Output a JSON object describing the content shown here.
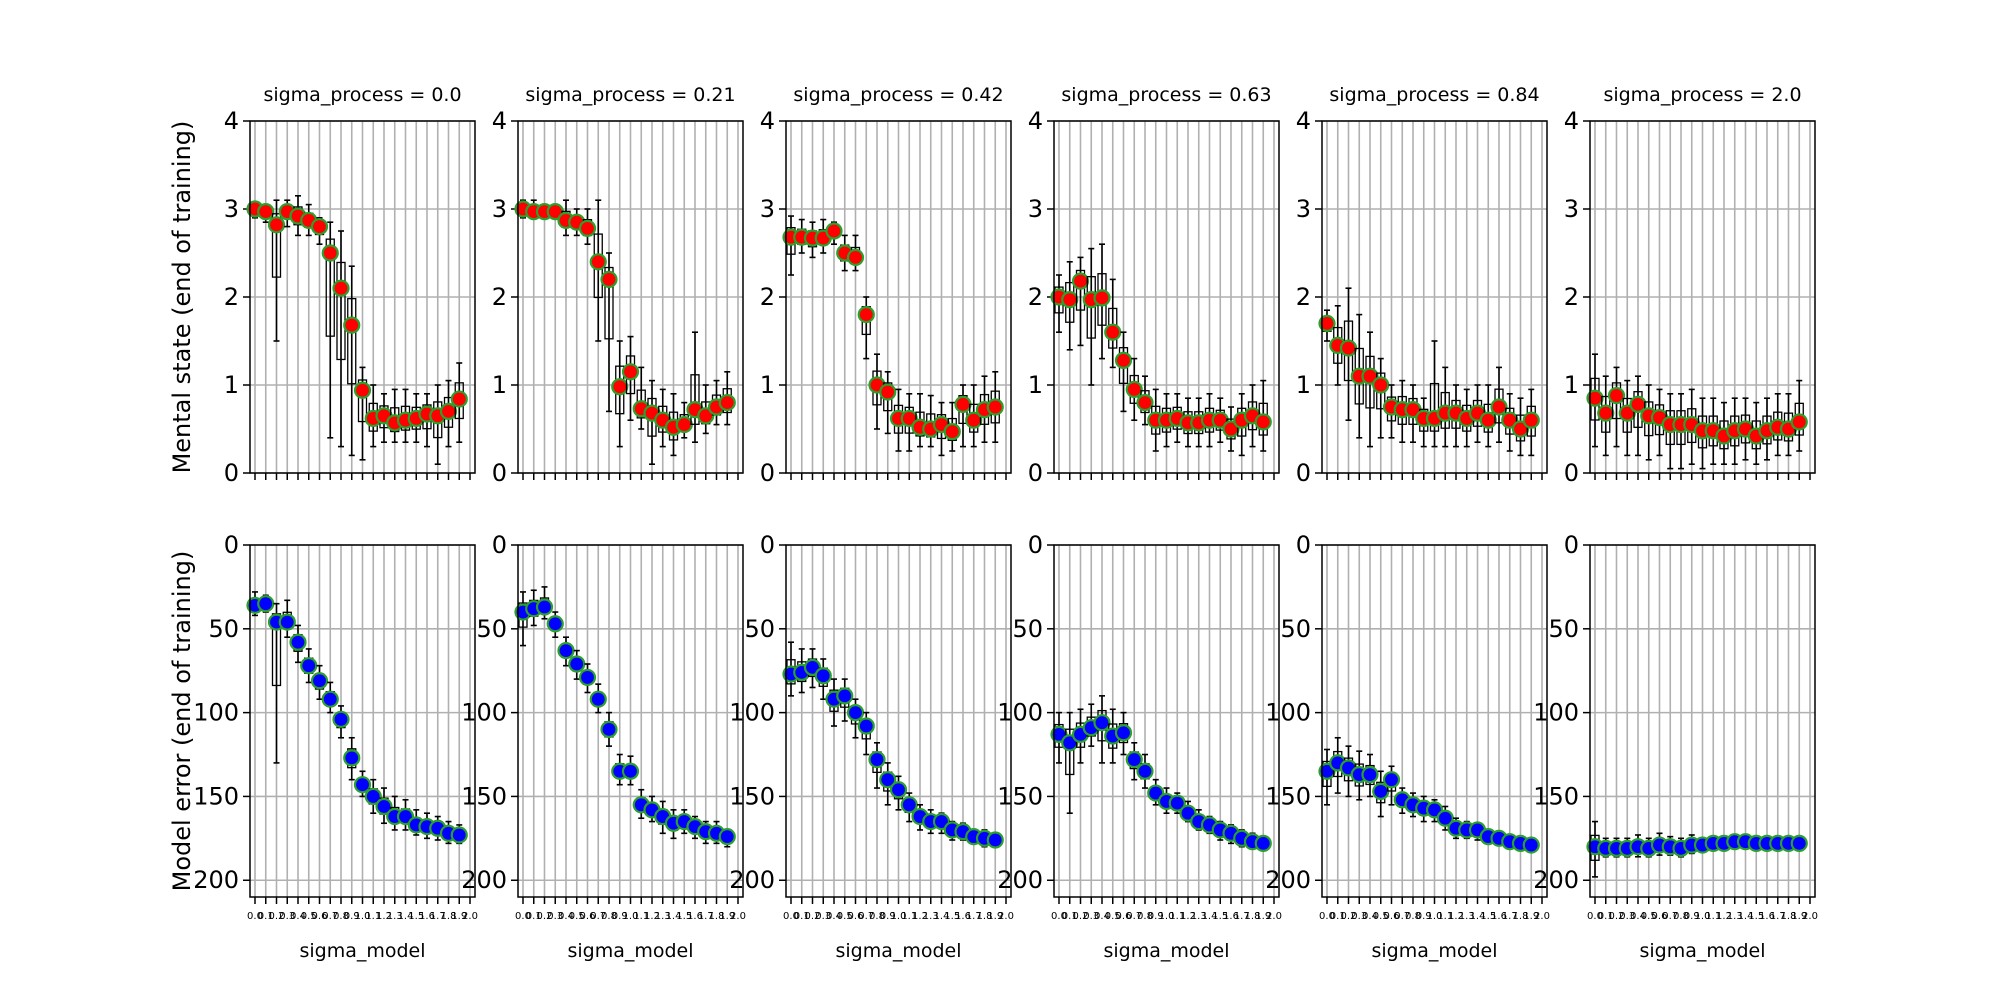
{
  "chart_data": {
    "type": "box-dot-grid",
    "x_tick_labels": [
      "0.0",
      "0.1",
      "0.2",
      "0.3",
      "0.4",
      "0.5",
      "0.6",
      "0.7",
      "0.8",
      "0.9",
      "1.0",
      "1.1",
      "1.2",
      "1.3",
      "1.4",
      "1.5",
      "1.6",
      "1.7",
      "1.8",
      "1.9",
      "2.0"
    ],
    "x_label": "sigma_model",
    "rows": [
      {
        "ylabel": "Mental state (end of training)",
        "ylim": [
          0,
          4
        ],
        "y_ticks": [
          0,
          1,
          2,
          3,
          4
        ],
        "inverted": false,
        "marker_face": "#ff0000",
        "marker_edge": "#2ca02c"
      },
      {
        "ylabel": "Model error (end of training)",
        "ylim": [
          0,
          210
        ],
        "y_ticks": [
          0,
          50,
          100,
          150,
          200
        ],
        "inverted": true,
        "marker_face": "#0000ff",
        "marker_edge": "#2ca02c"
      }
    ],
    "panels": [
      {
        "title": "sigma_process = 0.0",
        "mental": {
          "values": [
            3.0,
            2.97,
            2.82,
            2.97,
            2.92,
            2.87,
            2.8,
            2.5,
            2.1,
            1.68,
            0.94,
            0.62,
            0.65,
            0.57,
            0.6,
            0.62,
            0.67,
            0.65,
            0.7,
            0.84
          ],
          "err_low": [
            2.9,
            2.85,
            1.5,
            2.8,
            2.7,
            2.7,
            2.6,
            0.4,
            0.3,
            0.2,
            0.15,
            0.3,
            0.35,
            0.35,
            0.35,
            0.35,
            0.3,
            0.1,
            0.3,
            0.35
          ],
          "err_high": [
            3.05,
            3.05,
            3.1,
            3.1,
            3.15,
            3.05,
            2.9,
            2.85,
            2.75,
            2.35,
            1.2,
            1.0,
            0.9,
            0.95,
            0.95,
            0.9,
            0.9,
            1.0,
            1.05,
            1.25
          ]
        },
        "error": {
          "values": [
            36,
            35,
            46,
            46,
            58,
            72,
            81,
            92,
            104,
            127,
            143,
            150,
            156,
            162,
            162,
            167,
            168,
            169,
            172,
            173
          ],
          "err_low": [
            42,
            40,
            130,
            55,
            70,
            82,
            92,
            100,
            115,
            140,
            150,
            160,
            166,
            170,
            170,
            173,
            175,
            176,
            178,
            178
          ],
          "err_high": [
            28,
            30,
            35,
            33,
            48,
            62,
            72,
            82,
            96,
            115,
            135,
            140,
            145,
            150,
            152,
            158,
            160,
            162,
            165,
            167
          ]
        }
      },
      {
        "title": "sigma_process = 0.21",
        "mental": {
          "values": [
            3.0,
            2.97,
            2.97,
            2.97,
            2.87,
            2.85,
            2.78,
            2.4,
            2.2,
            0.98,
            1.15,
            0.73,
            0.68,
            0.6,
            0.52,
            0.55,
            0.72,
            0.65,
            0.75,
            0.8
          ],
          "err_low": [
            2.9,
            2.9,
            2.9,
            2.9,
            2.7,
            2.7,
            2.6,
            1.5,
            0.7,
            0.3,
            0.6,
            0.5,
            0.1,
            0.3,
            0.2,
            0.4,
            0.35,
            0.45,
            0.55,
            0.55
          ],
          "err_high": [
            3.1,
            3.1,
            3.05,
            3.05,
            3.1,
            3.0,
            3.0,
            3.1,
            2.5,
            1.5,
            1.55,
            1.2,
            1.05,
            0.95,
            0.9,
            0.8,
            1.6,
            1.0,
            1.05,
            1.15
          ]
        },
        "error": {
          "values": [
            40,
            38,
            37,
            47,
            63,
            71,
            79,
            92,
            110,
            135,
            135,
            155,
            158,
            162,
            166,
            165,
            168,
            171,
            172,
            174
          ],
          "err_low": [
            60,
            48,
            44,
            55,
            72,
            80,
            88,
            100,
            120,
            143,
            143,
            163,
            165,
            172,
            175,
            172,
            175,
            178,
            178,
            180
          ],
          "err_high": [
            28,
            27,
            25,
            40,
            55,
            63,
            71,
            83,
            100,
            125,
            126,
            146,
            150,
            153,
            158,
            158,
            162,
            165,
            165,
            170
          ]
        }
      },
      {
        "title": "sigma_process = 0.42",
        "mental": {
          "values": [
            2.68,
            2.68,
            2.67,
            2.67,
            2.75,
            2.5,
            2.45,
            1.8,
            1.0,
            0.92,
            0.62,
            0.62,
            0.52,
            0.5,
            0.55,
            0.47,
            0.78,
            0.6,
            0.72,
            0.75
          ],
          "err_low": [
            2.25,
            2.5,
            2.45,
            2.5,
            2.6,
            2.3,
            2.3,
            1.3,
            0.5,
            0.45,
            0.25,
            0.25,
            0.3,
            0.3,
            0.2,
            0.25,
            0.3,
            0.3,
            0.35,
            0.35
          ],
          "err_high": [
            2.92,
            2.88,
            2.85,
            2.88,
            2.85,
            2.7,
            2.7,
            2.0,
            1.35,
            1.15,
            0.95,
            0.9,
            0.9,
            0.88,
            0.8,
            0.8,
            1.0,
            1.0,
            1.1,
            1.15
          ]
        },
        "error": {
          "values": [
            77,
            76,
            73,
            78,
            92,
            90,
            100,
            108,
            128,
            140,
            146,
            155,
            162,
            165,
            165,
            170,
            171,
            174,
            175,
            176
          ],
          "err_low": [
            90,
            88,
            85,
            92,
            108,
            105,
            115,
            125,
            145,
            155,
            158,
            165,
            170,
            172,
            172,
            176,
            176,
            178,
            180,
            180
          ],
          "err_high": [
            58,
            62,
            62,
            68,
            80,
            80,
            92,
            100,
            118,
            130,
            138,
            148,
            155,
            158,
            160,
            165,
            166,
            170,
            170,
            172
          ]
        }
      },
      {
        "title": "sigma_process = 0.63",
        "mental": {
          "values": [
            2.0,
            1.97,
            2.18,
            1.97,
            1.99,
            1.6,
            1.28,
            0.95,
            0.8,
            0.6,
            0.6,
            0.62,
            0.57,
            0.57,
            0.6,
            0.6,
            0.5,
            0.6,
            0.65,
            0.58
          ],
          "err_low": [
            1.6,
            1.4,
            1.45,
            1.0,
            1.3,
            1.2,
            0.7,
            0.6,
            0.55,
            0.25,
            0.3,
            0.35,
            0.3,
            0.3,
            0.3,
            0.35,
            0.25,
            0.2,
            0.3,
            0.25
          ],
          "err_high": [
            2.25,
            2.4,
            2.45,
            2.55,
            2.6,
            2.2,
            1.6,
            1.3,
            1.1,
            0.95,
            0.9,
            0.9,
            0.85,
            0.85,
            0.9,
            0.85,
            0.75,
            0.9,
            1.0,
            1.05
          ]
        },
        "error": {
          "values": [
            113,
            118,
            113,
            109,
            106,
            114,
            112,
            128,
            135,
            148,
            153,
            154,
            160,
            165,
            167,
            170,
            172,
            175,
            177,
            178
          ],
          "err_low": [
            130,
            160,
            130,
            120,
            130,
            130,
            125,
            140,
            145,
            155,
            160,
            160,
            165,
            170,
            172,
            176,
            178,
            180,
            181,
            181
          ],
          "err_high": [
            100,
            100,
            98,
            95,
            90,
            98,
            100,
            118,
            125,
            140,
            145,
            148,
            153,
            158,
            162,
            165,
            167,
            170,
            172,
            174
          ]
        }
      },
      {
        "title": "sigma_process = 0.84",
        "mental": {
          "values": [
            1.7,
            1.45,
            1.42,
            1.1,
            1.1,
            1.0,
            0.75,
            0.72,
            0.72,
            0.62,
            0.62,
            0.68,
            0.68,
            0.62,
            0.68,
            0.6,
            0.75,
            0.6,
            0.5,
            0.6
          ],
          "err_low": [
            1.5,
            1.0,
            0.6,
            0.4,
            0.3,
            0.4,
            0.4,
            0.35,
            0.35,
            0.3,
            0.3,
            0.3,
            0.3,
            0.3,
            0.35,
            0.3,
            0.35,
            0.25,
            0.2,
            0.2
          ],
          "err_high": [
            1.85,
            1.9,
            2.1,
            1.8,
            1.6,
            1.3,
            1.0,
            1.05,
            1.0,
            0.85,
            1.5,
            1.2,
            1.0,
            0.95,
            1.0,
            1.0,
            1.2,
            0.9,
            0.85,
            0.95
          ]
        },
        "error": {
          "values": [
            135,
            130,
            133,
            137,
            137,
            147,
            140,
            152,
            155,
            157,
            158,
            163,
            169,
            170,
            170,
            174,
            175,
            177,
            178,
            179
          ],
          "err_low": [
            155,
            148,
            150,
            152,
            150,
            162,
            155,
            160,
            162,
            165,
            165,
            170,
            175,
            175,
            176,
            178,
            179,
            180,
            181,
            181
          ],
          "err_high": [
            122,
            115,
            120,
            123,
            125,
            135,
            132,
            145,
            148,
            150,
            152,
            156,
            163,
            165,
            166,
            170,
            172,
            174,
            175,
            176
          ]
        }
      },
      {
        "title": "sigma_process = 2.0",
        "mental": {
          "values": [
            0.85,
            0.68,
            0.88,
            0.68,
            0.78,
            0.65,
            0.63,
            0.55,
            0.55,
            0.55,
            0.48,
            0.48,
            0.42,
            0.48,
            0.5,
            0.42,
            0.48,
            0.52,
            0.5,
            0.58
          ],
          "err_low": [
            0.3,
            0.2,
            0.3,
            0.2,
            0.2,
            0.15,
            0.2,
            0.05,
            0.05,
            0.1,
            0.05,
            0.1,
            0.1,
            0.1,
            0.15,
            0.1,
            0.15,
            0.2,
            0.2,
            0.25
          ],
          "err_high": [
            1.35,
            1.1,
            1.2,
            1.05,
            1.1,
            1.0,
            0.95,
            0.9,
            0.9,
            0.95,
            0.85,
            0.85,
            0.8,
            0.85,
            0.85,
            0.8,
            0.85,
            0.9,
            0.9,
            1.05
          ]
        },
        "error": {
          "values": [
            180,
            181,
            181,
            181,
            180,
            181,
            179,
            180,
            181,
            179,
            179,
            178,
            178,
            177,
            177,
            178,
            178,
            178,
            178,
            178
          ],
          "err_low": [
            198,
            186,
            186,
            186,
            186,
            186,
            185,
            185,
            186,
            184,
            183,
            182,
            182,
            181,
            181,
            181,
            181,
            181,
            181,
            181
          ],
          "err_high": [
            165,
            175,
            175,
            175,
            173,
            175,
            172,
            174,
            175,
            173,
            175,
            174,
            174,
            174,
            174,
            175,
            175,
            175,
            175,
            175
          ]
        }
      }
    ]
  }
}
